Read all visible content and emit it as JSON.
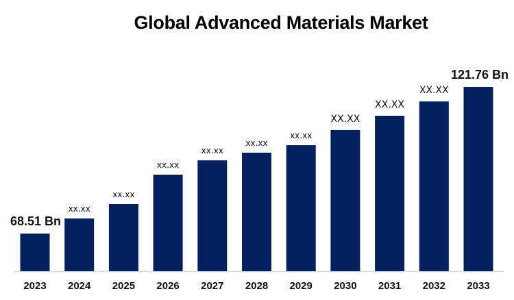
{
  "chart_data": {
    "type": "bar",
    "title": "Global Advanced Materials Market",
    "xlabel": "",
    "ylabel": "",
    "categories": [
      "2023",
      "2024",
      "2025",
      "2026",
      "2027",
      "2028",
      "2029",
      "2030",
      "2031",
      "2032",
      "2033"
    ],
    "values": [
      68.51,
      74.0,
      79.2,
      89.9,
      95.1,
      97.9,
      100.6,
      106.1,
      111.3,
      116.5,
      121.76
    ],
    "data_labels": [
      "68.51 Bn",
      "xx.xx",
      "xx.xx",
      "xx.xx",
      "xx.xx",
      "xx.xx",
      "xx.xx",
      "XX.XX",
      "XX.XX",
      "XX.XX",
      "121.76 Bn"
    ],
    "grid": false,
    "legend": "none",
    "bar_color": "#03215f"
  }
}
